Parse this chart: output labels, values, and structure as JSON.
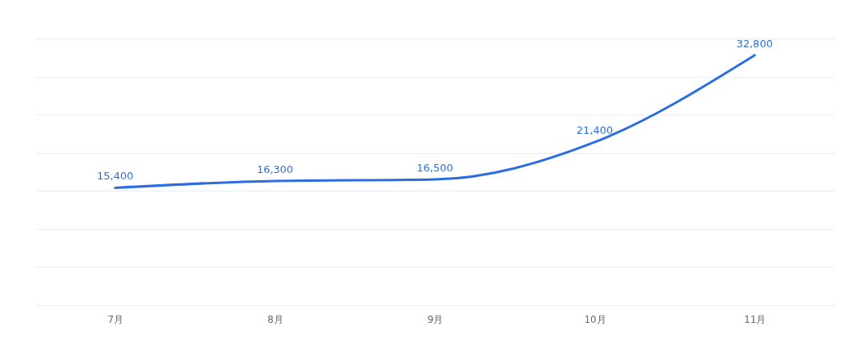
{
  "chart_data": {
    "type": "line",
    "categories": [
      "7月",
      "8月",
      "9月",
      "10月",
      "11月"
    ],
    "series": [
      {
        "color": "#2b6de0",
        "values": [
          15400,
          16300,
          16500,
          21400,
          32800
        ],
        "value_labels": [
          "15,400",
          "16,300",
          "16,500",
          "21,400",
          "32,800"
        ]
      }
    ],
    "grid": "y",
    "tick_labels": "x",
    "marker": "none"
  }
}
